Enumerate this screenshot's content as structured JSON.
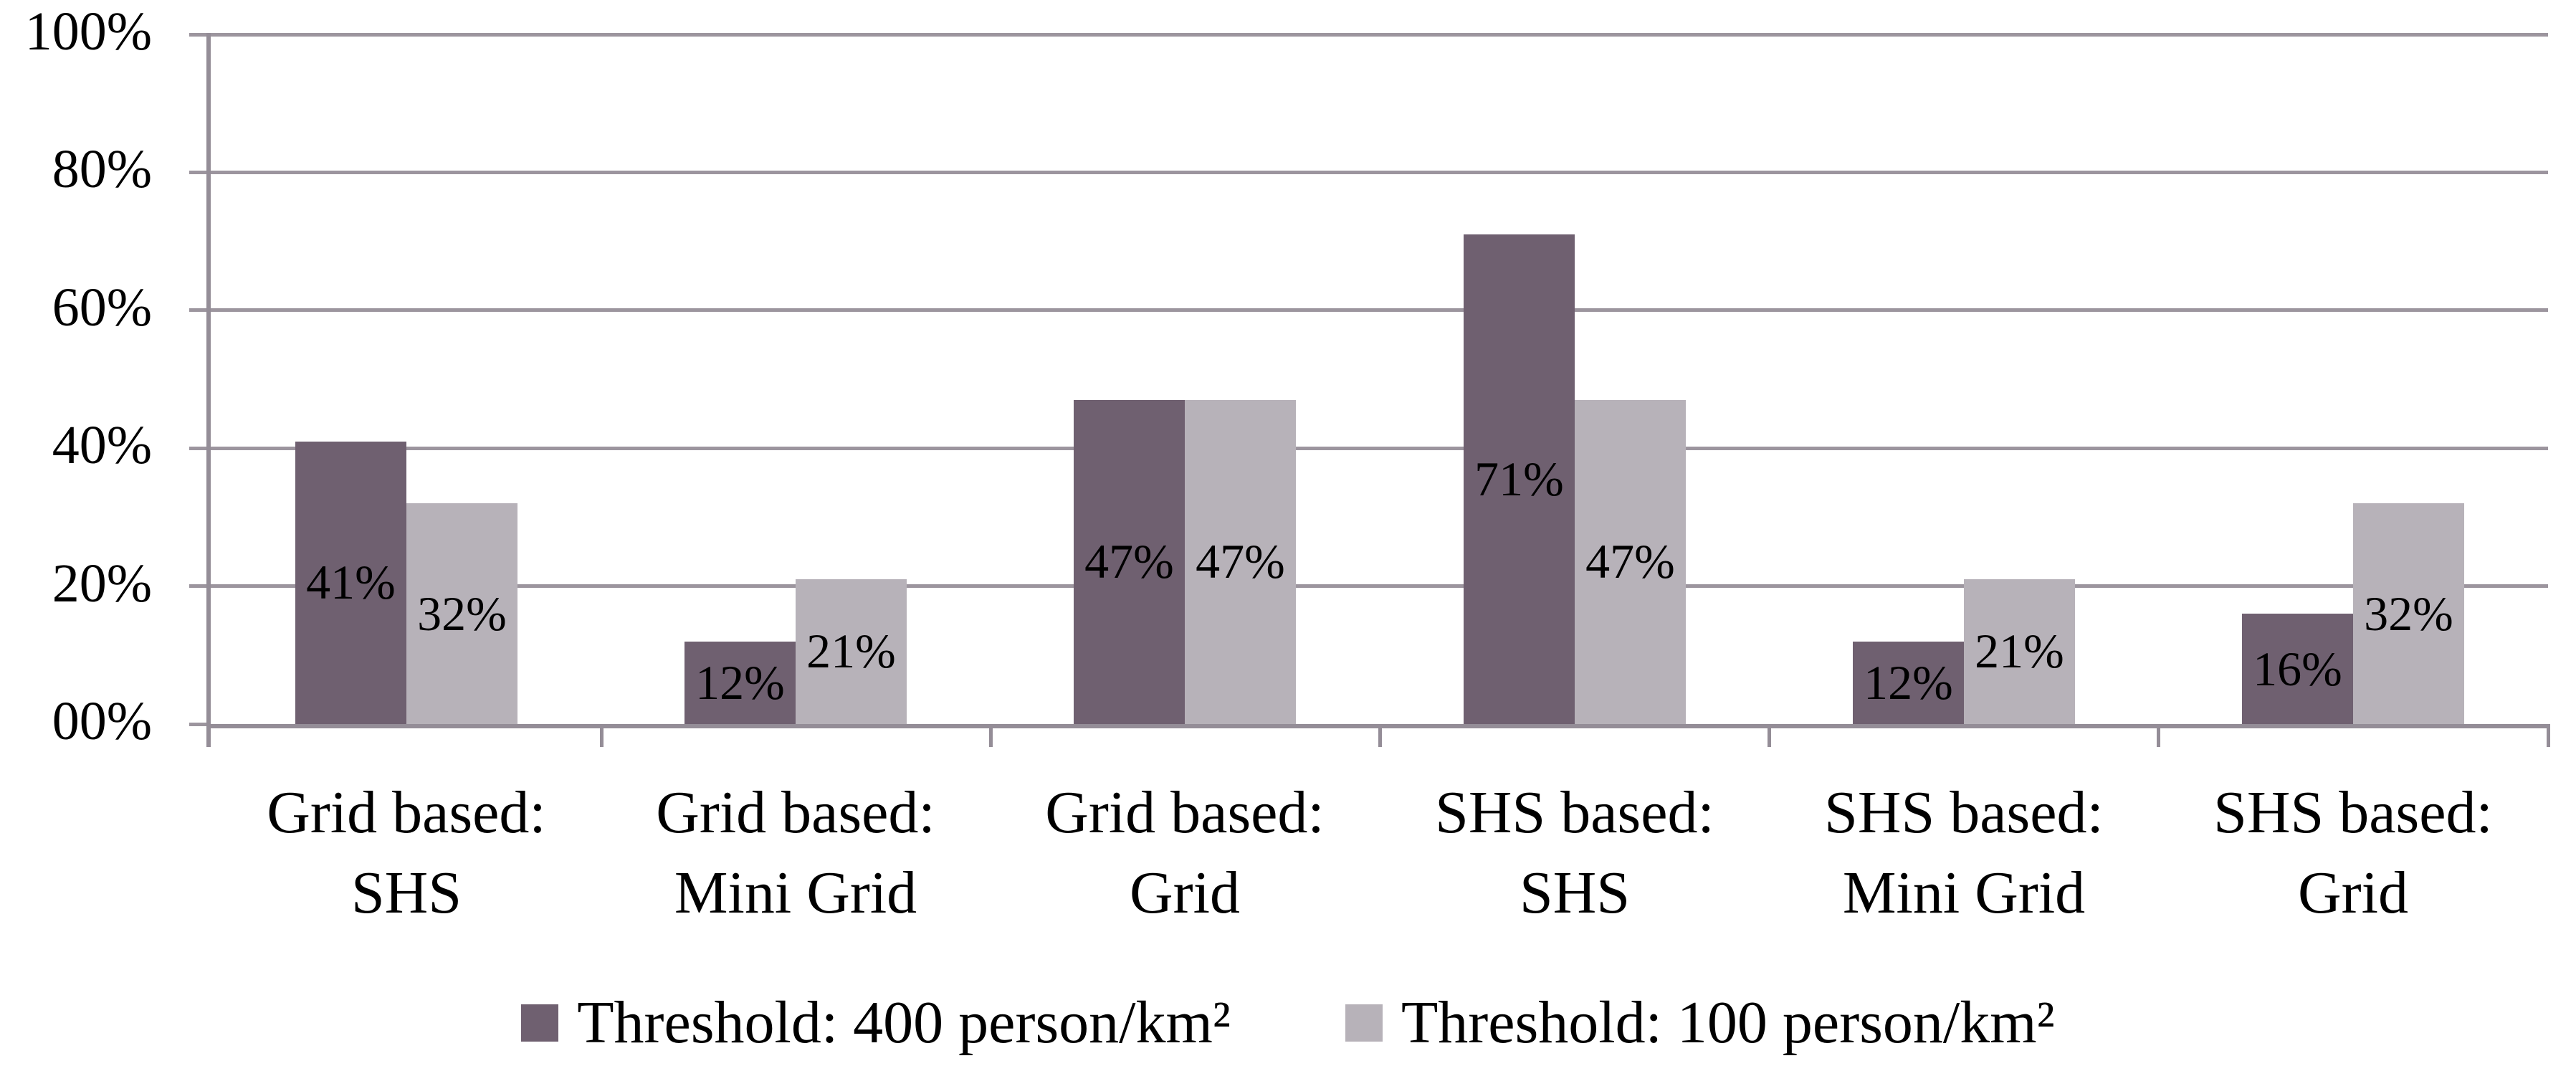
{
  "chart_data": {
    "type": "bar",
    "title": "",
    "categories": [
      {
        "line1": "Grid based:",
        "line2": "SHS"
      },
      {
        "line1": "Grid based:",
        "line2": "Mini Grid"
      },
      {
        "line1": "Grid based:",
        "line2": "Grid"
      },
      {
        "line1": "SHS based:",
        "line2": "SHS"
      },
      {
        "line1": "SHS based:",
        "line2": "Mini Grid"
      },
      {
        "line1": "SHS based:",
        "line2": "Grid"
      }
    ],
    "series": [
      {
        "name": "Threshold: 400 person/km²",
        "color": "#6F6070",
        "values": [
          41,
          12,
          47,
          71,
          12,
          16
        ],
        "data_labels": [
          "41%",
          "12%",
          "47%",
          "71%",
          "12%",
          "16%"
        ]
      },
      {
        "name": "Threshold: 100 person/km²",
        "color": "#B7B2B9",
        "values": [
          32,
          21,
          47,
          47,
          21,
          32
        ],
        "data_labels": [
          "32%",
          "21%",
          "47%",
          "47%",
          "21%",
          "32%"
        ]
      }
    ],
    "y_axis": {
      "min": 0,
      "max": 100,
      "tick_labels": [
        "00%",
        "20%",
        "40%",
        "60%",
        "80%",
        "100%"
      ],
      "tick_values": [
        0,
        20,
        40,
        60,
        80,
        100
      ]
    },
    "grid": true,
    "legend_position": "bottom",
    "colors": {
      "gridline": "#9C959E",
      "axis_line": "#948D97",
      "data_label_text": "#000000",
      "axis_label_text": "#000000",
      "background": "#FFFFFF"
    }
  }
}
